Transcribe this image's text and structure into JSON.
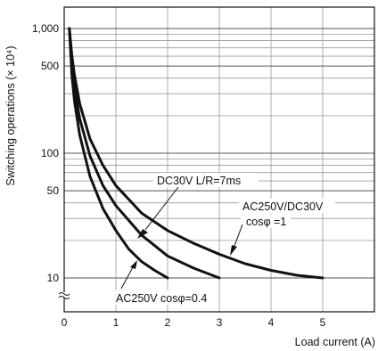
{
  "chart_data": {
    "type": "line",
    "ylabel": "Switching operations (× 10⁴)",
    "xlabel": "Load current (A)",
    "x_ticks": [
      "0",
      "1",
      "2",
      "3",
      "4",
      "5"
    ],
    "y_ticks": [
      "1,000",
      "500",
      "100",
      "50",
      "10"
    ],
    "y_scale": "log",
    "xlim": [
      0,
      6
    ],
    "ylim": [
      10,
      1000
    ],
    "grid": true,
    "series": [
      {
        "name": "AC250V/DC30V cosφ=1",
        "x": [
          0.1,
          0.15,
          0.2,
          0.3,
          0.5,
          0.75,
          1.0,
          1.5,
          2.0,
          2.5,
          3.0,
          3.5,
          4.0,
          4.5,
          5.0
        ],
        "y": [
          1000,
          600,
          420,
          250,
          130,
          80,
          55,
          33,
          24,
          19,
          15.5,
          13,
          11.5,
          10.5,
          10
        ]
      },
      {
        "name": "DC30V L/R=7ms",
        "x": [
          0.1,
          0.15,
          0.2,
          0.3,
          0.5,
          0.75,
          1.0,
          1.5,
          2.0,
          2.5,
          3.0
        ],
        "y": [
          1000,
          500,
          330,
          190,
          95,
          55,
          38,
          22,
          15,
          12,
          10
        ]
      },
      {
        "name": "AC250V cosφ=0.4",
        "x": [
          0.1,
          0.15,
          0.2,
          0.3,
          0.5,
          0.75,
          1.0,
          1.25,
          1.5,
          1.75,
          2.0
        ],
        "y": [
          1000,
          420,
          260,
          140,
          65,
          36,
          24,
          17,
          13.5,
          11.5,
          10
        ]
      }
    ],
    "annotations": [
      {
        "text": "DC30V L/R=7ms"
      },
      {
        "text": "AC250V/DC30V"
      },
      {
        "text": "cosφ =1"
      },
      {
        "text": "AC250V  cosφ=0.4"
      }
    ]
  }
}
